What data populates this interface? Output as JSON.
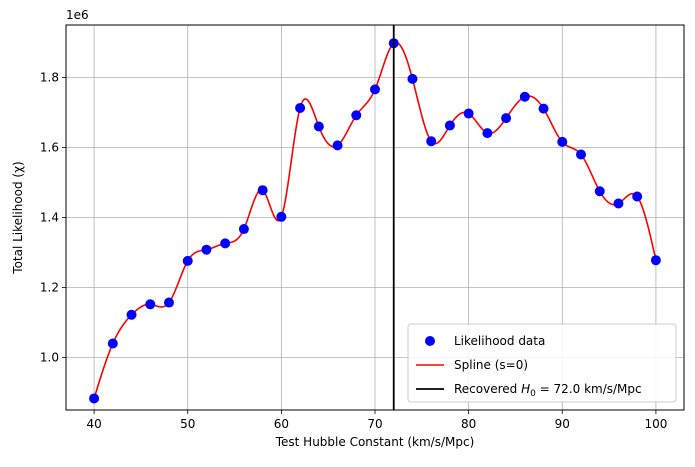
{
  "chart_data": {
    "type": "scatter",
    "xlabel": "Test Hubble Constant (km/s/Mpc)",
    "ylabel": "Total Likelihood (χ)",
    "y_offset_label": "1e6",
    "xlim": [
      37,
      103
    ],
    "ylim": [
      850000,
      1950000
    ],
    "grid": true,
    "legend_placement": "lower-right",
    "x_ticks": [
      40,
      50,
      60,
      70,
      80,
      90,
      100
    ],
    "y_ticks": [
      1.0,
      1.2,
      1.4,
      1.6,
      1.8
    ],
    "y_tick_scale": 1000000,
    "series": [
      {
        "name": "Likelihood data",
        "kind": "scatter",
        "color": "#0000ff",
        "x": [
          40,
          42,
          44,
          46,
          48,
          50,
          52,
          54,
          56,
          58,
          60,
          62,
          64,
          66,
          68,
          70,
          72,
          74,
          76,
          78,
          80,
          82,
          84,
          86,
          88,
          90,
          92,
          94,
          96,
          98,
          100
        ],
        "y": [
          883000,
          1040000,
          1122000,
          1152000,
          1157000,
          1276000,
          1308000,
          1326000,
          1367000,
          1478000,
          1402000,
          1713000,
          1660000,
          1606000,
          1692000,
          1766000,
          1898000,
          1796000,
          1618000,
          1663000,
          1697000,
          1641000,
          1684000,
          1745000,
          1711000,
          1616000,
          1580000,
          1475000,
          1440000,
          1460000,
          1278000
        ]
      },
      {
        "name": "Spline (s=0)",
        "kind": "line",
        "color": "#ff0000"
      },
      {
        "name_prefix": "Recovered ",
        "name_symbol": "H",
        "name_subscript": "0",
        "name_suffix": " = 72.0 km/s/Mpc",
        "kind": "vline",
        "x": 72.0,
        "color": "#000000"
      }
    ]
  }
}
